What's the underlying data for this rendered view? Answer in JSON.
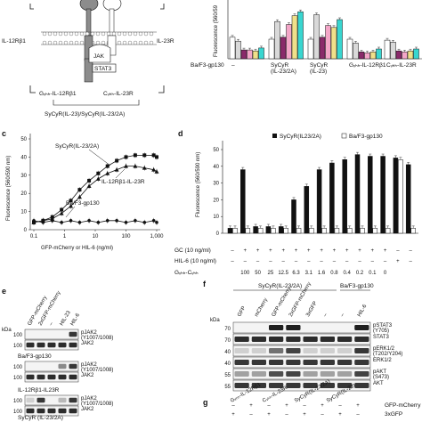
{
  "panels": {
    "c": "c",
    "d": "d",
    "e": "e",
    "f": "f",
    "g": "g"
  },
  "schematic": {
    "left_receptor": "IL-12Rβ1",
    "right_receptor": "IL-23R",
    "kinase": "JAK",
    "stat": "STAT3",
    "bottom_left": "Gᵥₕₕ-IL-12Rβ1",
    "bottom_right": "Cᵥₕₕ-IL-23R",
    "bottom_caption": "SyCyR(IL-23)/SyCyR(IL-23/2A)"
  },
  "top_right": {
    "row_label": "Ba/F3-gp130",
    "groups": [
      "–",
      "SyCyR\n(IL-23/2A)",
      "SyCyR\n(IL-23)",
      "Gᵥₕₕ-IL-12Rβ1",
      "Cᵥₕₕ-IL-23R"
    ],
    "ylabel": "Fluorescence (560/59",
    "colors": [
      "#ffffff",
      "#d9d9d9",
      "#8a2a6a",
      "#f4a6c8",
      "#f0e08a",
      "#38d6d0"
    ],
    "chart_data": {
      "type": "bar",
      "categories": [
        "–",
        "SyCyR (IL-23/2A)",
        "SyCyR (IL-23)",
        "Gᵥₕₕ-IL-12Rβ1",
        "Cᵥₕₕ-IL-23R"
      ],
      "series_values": [
        [
          22,
          18,
          9,
          9,
          8,
          11
        ],
        [
          20,
          38,
          22,
          35,
          44,
          48
        ],
        [
          20,
          45,
          22,
          34,
          32,
          40
        ],
        [
          20,
          16,
          7,
          6,
          7,
          10
        ],
        [
          19,
          17,
          8,
          7,
          8,
          10
        ]
      ],
      "ymax": 60
    }
  },
  "chart_c": {
    "ylabel": "Fluorescence (560/590 nm)",
    "xlabel": "GFP-mCherry or HIL-6 (ng/ml)",
    "series_labels": [
      "SyCyR(IL-23/2A)",
      "IL-12Rβ1-IL-23R",
      "Ba/F3-gp130"
    ],
    "yticks": [
      "0",
      "10",
      "20",
      "30",
      "40",
      "50"
    ],
    "xticks": [
      "0.1",
      "1",
      "10",
      "100",
      "1,000"
    ],
    "chart_data": {
      "type": "line",
      "x": [
        0.1,
        0.2,
        0.4,
        0.8,
        1.6,
        3.1,
        6.3,
        12.5,
        25,
        50,
        100,
        200,
        400,
        800,
        1000
      ],
      "series": [
        {
          "name": "SyCyR(IL-23/2A)",
          "values": [
            4,
            5,
            7,
            11,
            16,
            22,
            27,
            31,
            35,
            38,
            40,
            41,
            41,
            41,
            40
          ]
        },
        {
          "name": "IL-12Rβ1-IL-23R",
          "values": [
            4,
            5,
            6,
            9,
            13,
            18,
            24,
            28,
            31,
            33,
            35,
            35,
            34,
            33,
            32
          ]
        },
        {
          "name": "Ba/F3-gp130",
          "values": [
            5,
            4,
            5,
            4,
            5,
            4,
            5,
            4,
            5,
            5,
            4,
            5,
            4,
            5,
            4
          ]
        }
      ],
      "ylim": [
        0,
        50
      ],
      "xscale": "log"
    }
  },
  "chart_d": {
    "ylabel": "Fluorescence (560/590 nm)",
    "legend": [
      "SyCyR(IL23/2A)",
      "Ba/F3-gp130"
    ],
    "yticks": [
      "0",
      "10",
      "20",
      "30",
      "40",
      "50"
    ],
    "row_labels": [
      "GC (10 ng/ml)",
      "HIL-6 (10 ng/ml)",
      "Gᵥₕₕ-Cᵥₕₕ"
    ],
    "gc_row": [
      "–",
      "+",
      "+",
      "+",
      "+",
      "+",
      "+",
      "+",
      "+",
      "+",
      "+",
      "+",
      "+",
      "–",
      "–"
    ],
    "hil6_row": [
      "–",
      "–",
      "–",
      "–",
      "–",
      "–",
      "–",
      "–",
      "–",
      "–",
      "–",
      "–",
      "–",
      "+",
      "–"
    ],
    "ratio_row": [
      "",
      "100",
      "50",
      "25",
      "12.5",
      "6.3",
      "3.1",
      "1.6",
      "0.8",
      "0.4",
      "0.2",
      "0.1",
      "0",
      "",
      ""
    ],
    "chart_data": {
      "type": "bar",
      "series": [
        {
          "name": "SyCyR(IL23/2A)",
          "values": [
            3,
            38,
            4,
            4,
            4,
            20,
            28,
            38,
            42,
            44,
            47,
            46,
            46,
            45,
            41
          ]
        },
        {
          "name": "Ba/F3-gp130",
          "values": [
            3,
            3,
            3,
            3,
            3,
            3,
            3,
            3,
            3,
            3,
            3,
            3,
            3,
            44,
            3
          ]
        }
      ],
      "ylim": [
        0,
        50
      ]
    }
  },
  "blot_e": {
    "columns": [
      "GFP-mCherry",
      "2xGFP-mCherry",
      "–",
      "HIL-23",
      "HIL-6"
    ],
    "kda": "kDa",
    "mw": [
      "100",
      "100"
    ],
    "bands": [
      "pJAK2\n(Y1007/1008)",
      "JAK2"
    ],
    "groups": [
      "Ba/F3-gp130",
      "IL-12Rβ1-IL23R",
      "SyCyR (IL-23/2A)"
    ],
    "lanes": [
      [
        [
          0,
          0,
          0,
          0,
          0.85
        ],
        [
          0.9,
          0.9,
          0.9,
          0.9,
          0.9
        ]
      ],
      [
        [
          0,
          0,
          0,
          0.5,
          0.85
        ],
        [
          0.9,
          0.9,
          0.9,
          0.9,
          0.9
        ]
      ],
      [
        [
          0.2,
          0.85,
          0,
          0.3,
          0.85
        ],
        [
          0.9,
          0.9,
          0.9,
          0.9,
          0.9
        ]
      ],
      [
        [
          0,
          0,
          0,
          0,
          0
        ],
        [
          0.85,
          0.85,
          0.85,
          0.85,
          0.85
        ]
      ]
    ]
  },
  "blot_f": {
    "header_left": "SyCyR(IL-23/2A)",
    "header_right": "Ba/F3-gp130",
    "columns": [
      "GFP",
      "mCherry",
      "GFP-mCherry",
      "2xGFP-mCherry",
      "3xGFP",
      "–",
      "–",
      "HIL-6"
    ],
    "kda": "kDa",
    "mw": [
      "70",
      "70",
      "40",
      "40",
      "55",
      "55"
    ],
    "bands": [
      "pSTAT3\n(Y705)",
      "STAT3",
      "pERK1/2\n(T202/Y204)",
      "ERK1/2",
      "pAKT\n(S473)",
      "AKT"
    ],
    "lanes": [
      [
        0,
        0,
        0.95,
        0.95,
        0,
        0,
        0,
        0.95
      ],
      [
        0.9,
        0.9,
        0.9,
        0.9,
        0.9,
        0.9,
        0.9,
        0.9
      ],
      [
        0.2,
        0.2,
        0.6,
        0.8,
        0.2,
        0.2,
        0.2,
        0.85
      ],
      [
        0.85,
        0.85,
        0.85,
        0.85,
        0.85,
        0.85,
        0.85,
        0.85
      ],
      [
        0.4,
        0.4,
        0.75,
        0.8,
        0.4,
        0.4,
        0.4,
        0.8
      ],
      [
        0.85,
        0.85,
        0.85,
        0.85,
        0.85,
        0.85,
        0.85,
        0.85
      ]
    ]
  },
  "grid_g": {
    "columns": [
      "Gᵥₕₕ-IL-12Rβ1",
      "Cᵥₕₕ-IL-23R",
      "SyCyR(IL-23/2A)",
      "SyCyR(IL-23)"
    ],
    "rows": [
      "GFP-mCherry",
      "3xGFP"
    ],
    "row1": [
      "–",
      "+",
      "–",
      "+",
      "–",
      "+",
      "–",
      "+"
    ],
    "row2": [
      "+",
      "–",
      "+",
      "–",
      "+",
      "–",
      "+",
      "–"
    ]
  }
}
